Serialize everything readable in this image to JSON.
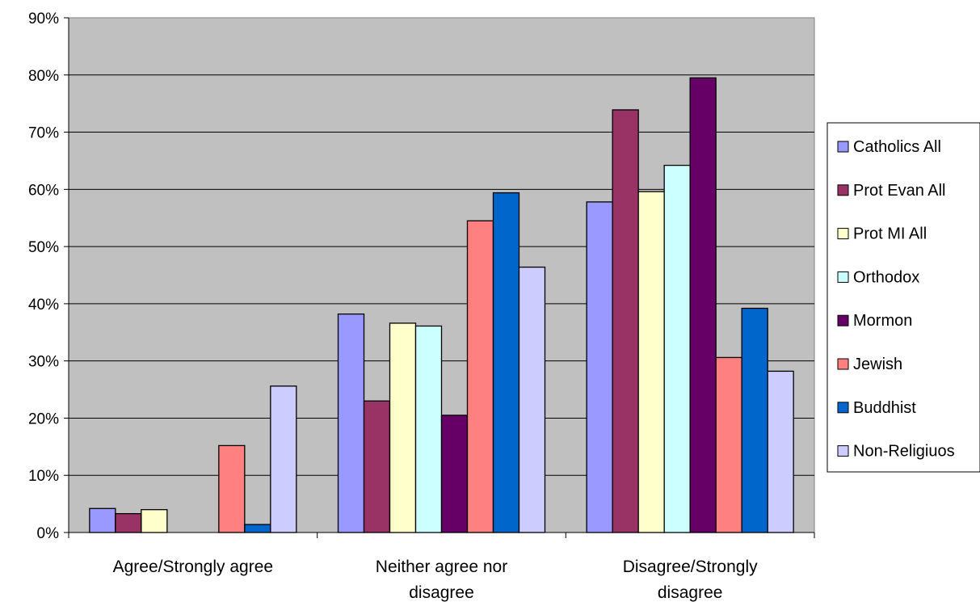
{
  "chart_data": {
    "type": "bar",
    "title": "",
    "xlabel": "",
    "ylabel": "",
    "ylim": [
      0,
      90
    ],
    "y_tick_step": 10,
    "y_tick_suffix": "%",
    "grid": "horizontal",
    "plot_background": "#c0c0c0",
    "legend_position": "right",
    "categories": [
      [
        "Agree/Strongly agree"
      ],
      [
        "Neither agree nor",
        "disagree"
      ],
      [
        "Disagree/Strongly",
        "disagree"
      ]
    ],
    "series": [
      {
        "name": "Catholics All",
        "color": "#9999ff",
        "values": [
          4.2,
          38.2,
          57.8
        ]
      },
      {
        "name": "Prot Evan All",
        "color": "#993366",
        "values": [
          3.3,
          23.0,
          73.9
        ]
      },
      {
        "name": "Prot MI All",
        "color": "#ffffcc",
        "values": [
          4.0,
          36.6,
          59.6
        ]
      },
      {
        "name": "Orthodox",
        "color": "#ccffff",
        "values": [
          0,
          36.1,
          64.2
        ]
      },
      {
        "name": "Mormon",
        "color": "#660066",
        "values": [
          0,
          20.5,
          79.5
        ]
      },
      {
        "name": "Jewish",
        "color": "#ff8080",
        "values": [
          15.2,
          54.5,
          30.6
        ]
      },
      {
        "name": "Buddhist",
        "color": "#0066cc",
        "values": [
          1.4,
          59.4,
          39.2
        ]
      },
      {
        "name": "Non-Religiuos",
        "color": "#ccccff",
        "values": [
          25.6,
          46.4,
          28.2
        ]
      }
    ]
  }
}
